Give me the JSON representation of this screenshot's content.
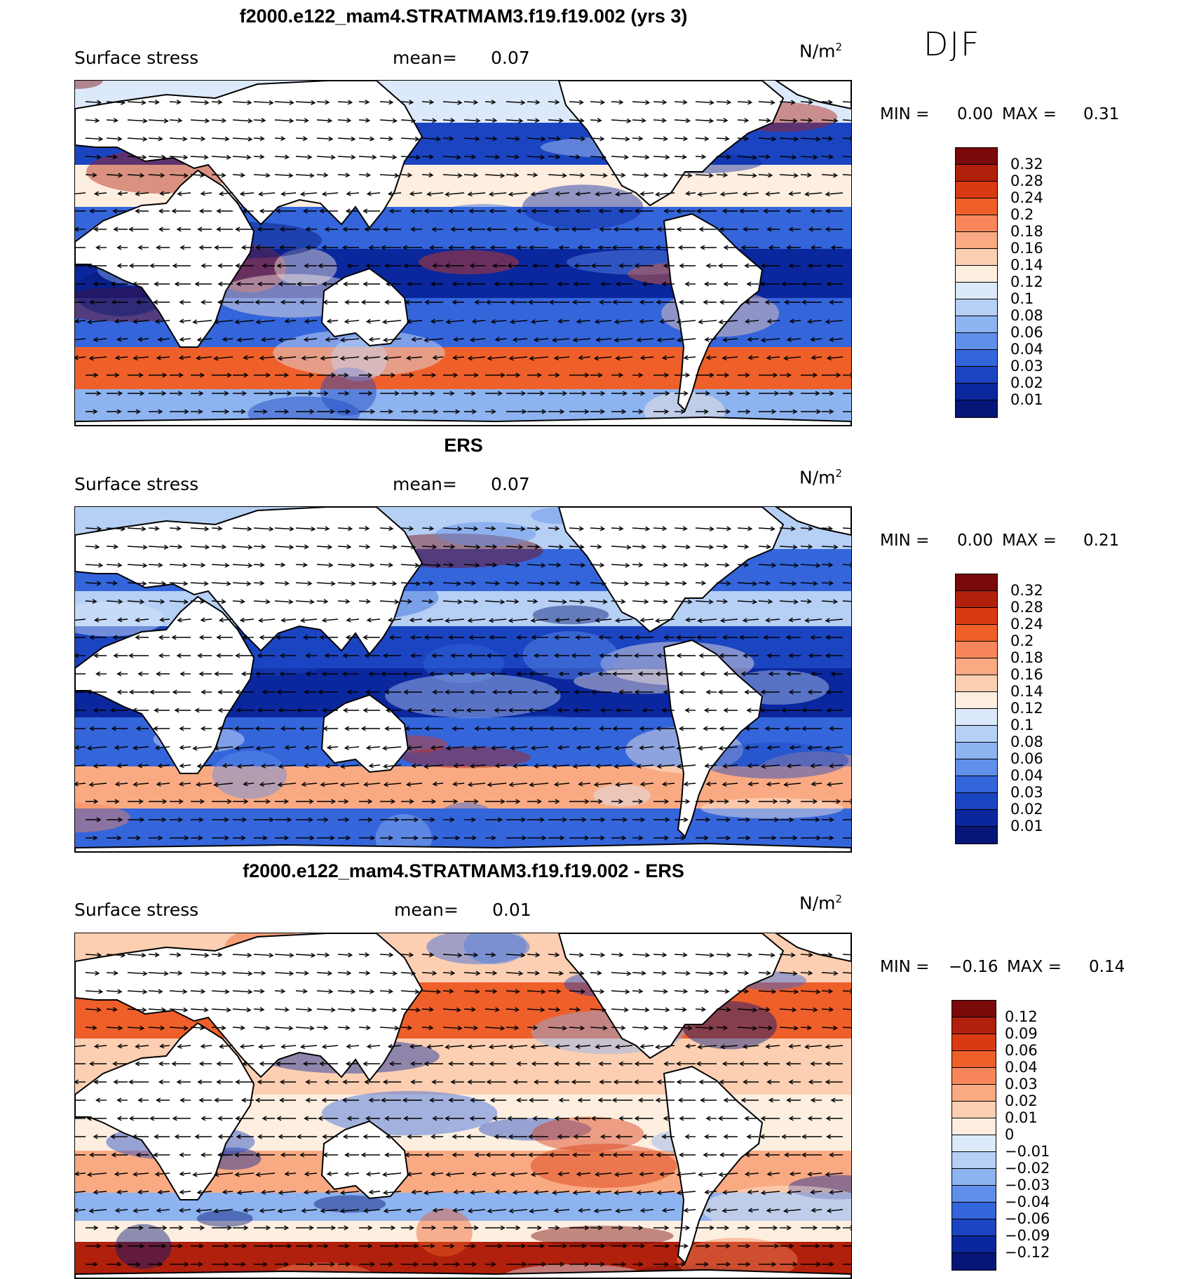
{
  "season": "DJF",
  "panels": [
    {
      "id": "model",
      "title": "f2000.e122_mam4.STRATMAM3.f19.f19.002 (yrs 3)",
      "variable": "Surface stress",
      "mean_label": "mean=",
      "mean_value": "0.07",
      "units": "N/m",
      "units_sup": "2",
      "min_label": "MIN =",
      "min_value": "0.00",
      "max_label": "MAX =",
      "max_value": "0.31"
    },
    {
      "id": "obs",
      "title": "ERS",
      "variable": "Surface stress",
      "mean_label": "mean=",
      "mean_value": "0.07",
      "units": "N/m",
      "units_sup": "2",
      "min_label": "MIN =",
      "min_value": "0.00",
      "max_label": "MAX =",
      "max_value": "0.21"
    },
    {
      "id": "diff",
      "title": "f2000.e122_mam4.STRATMAM3.f19.f19.002 - ERS",
      "variable": "Surface stress",
      "mean_label": "mean=",
      "mean_value": "0.01",
      "units": "N/m",
      "units_sup": "2",
      "min_label": "MIN =",
      "min_value": "−0.16",
      "max_label": "MAX =",
      "max_value": "0.14"
    }
  ],
  "colorbars": {
    "abs_labels": [
      "0.32",
      "0.28",
      "0.24",
      "0.2",
      "0.18",
      "0.16",
      "0.14",
      "0.12",
      "0.1",
      "0.08",
      "0.06",
      "0.04",
      "0.03",
      "0.02",
      "0.01"
    ],
    "diff_labels": [
      "0.12",
      "0.09",
      "0.06",
      "0.04",
      "0.03",
      "0.02",
      "0.01",
      "0",
      "−0.01",
      "−0.02",
      "−0.03",
      "−0.04",
      "−0.06",
      "−0.09",
      "−0.12"
    ],
    "colors": [
      "#7a0a0a",
      "#b0200c",
      "#d93a12",
      "#ef5f2a",
      "#f7875a",
      "#f9aa82",
      "#fccfb2",
      "#fdeee0",
      "#dce9fa",
      "#b5cff5",
      "#8db3f0",
      "#5f8fe9",
      "#3465da",
      "#1b44c1",
      "#0b279e",
      "#051676"
    ]
  },
  "icons": [
    "map-background",
    "wind-vector-arrows",
    "coastline"
  ]
}
